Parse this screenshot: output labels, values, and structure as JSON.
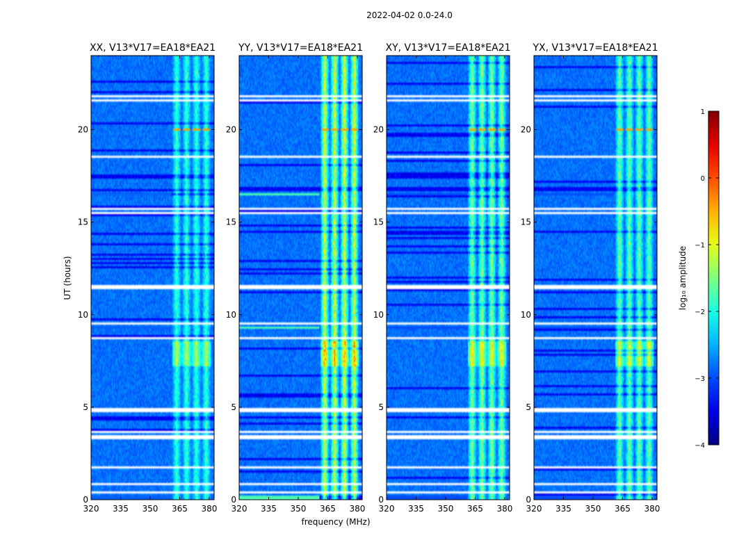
{
  "chart_data": {
    "type": "heatmap",
    "suptitle": "2022-04-02 0.0-24.0",
    "ylabel": "UT (hours)",
    "xlabel": "frequency (MHz)",
    "xlim": [
      320,
      382.5
    ],
    "ylim": [
      0,
      24
    ],
    "xticks": [
      320,
      335,
      350,
      365,
      380
    ],
    "yticks": [
      0,
      5,
      10,
      15,
      20
    ],
    "rfi_band_mhz": [
      361.5,
      381
    ],
    "rfi_channels_mhz": [
      363.5,
      368.5,
      373.5,
      378.5
    ],
    "flagged_hours": [
      [
        0.35,
        0.45
      ],
      [
        0.78,
        0.86
      ],
      [
        1.73,
        1.81
      ],
      [
        1.98,
        2.04
      ],
      [
        3.32,
        3.52
      ],
      [
        3.6,
        3.68
      ],
      [
        4.72,
        4.8
      ],
      [
        4.88,
        4.95
      ],
      [
        8.72,
        8.8
      ],
      [
        8.86,
        8.95
      ],
      [
        9.5,
        9.58
      ],
      [
        11.35,
        11.6
      ],
      [
        15.45,
        15.6
      ],
      [
        15.68,
        15.8
      ],
      [
        18.5,
        18.58
      ],
      [
        20.05,
        20.1
      ],
      [
        21.55,
        21.62
      ],
      [
        21.8,
        21.88
      ]
    ],
    "panels": [
      {
        "title": "XX, V13*V17=EA18*EA21",
        "rfi_level": 0.55,
        "low_band_level": 0.22
      },
      {
        "title": "YY, V13*V17=EA18*EA21",
        "rfi_level": 0.75,
        "low_band_level": 0.45
      },
      {
        "title": "XY, V13*V17=EA18*EA21",
        "rfi_level": 0.65,
        "low_band_level": 0.2
      },
      {
        "title": "YX, V13*V17=EA18*EA21",
        "rfi_level": 0.62,
        "low_band_level": 0.2
      }
    ],
    "colorbar": {
      "label": "log₁₀ amplitude",
      "range": [
        -4,
        1
      ],
      "ticks": [
        "1",
        "0",
        "−1",
        "−2",
        "−3",
        "−4"
      ],
      "colormap": "jet"
    }
  }
}
